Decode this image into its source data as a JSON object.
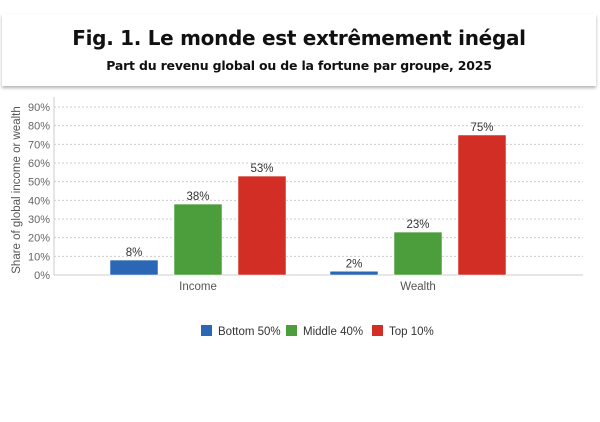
{
  "chart_data": {
    "type": "bar",
    "title": "Fig. 1. Le monde est extrêmement inégal",
    "subtitle": "Part du revenu global ou de la fortune par groupe, 2025",
    "xlabel": "",
    "ylabel": "Share of global income or wealth",
    "categories": [
      "Income",
      "Wealth"
    ],
    "series": [
      {
        "name": "Bottom 50%",
        "values": [
          8,
          2
        ],
        "color": "#2b67b5"
      },
      {
        "name": "Middle 40%",
        "values": [
          38,
          23
        ],
        "color": "#4c9e3c"
      },
      {
        "name": "Top 10%",
        "values": [
          53,
          75
        ],
        "color": "#d22e26"
      }
    ],
    "data_labels": [
      [
        "8%",
        "2%"
      ],
      [
        "38%",
        "23%"
      ],
      [
        "53%",
        "75%"
      ]
    ],
    "ylim": [
      0,
      90
    ],
    "yticks": [
      "0%",
      "10%",
      "20%",
      "30%",
      "40%",
      "50%",
      "60%",
      "70%",
      "80%",
      "90%"
    ],
    "grid": true,
    "legend": "bottom"
  }
}
